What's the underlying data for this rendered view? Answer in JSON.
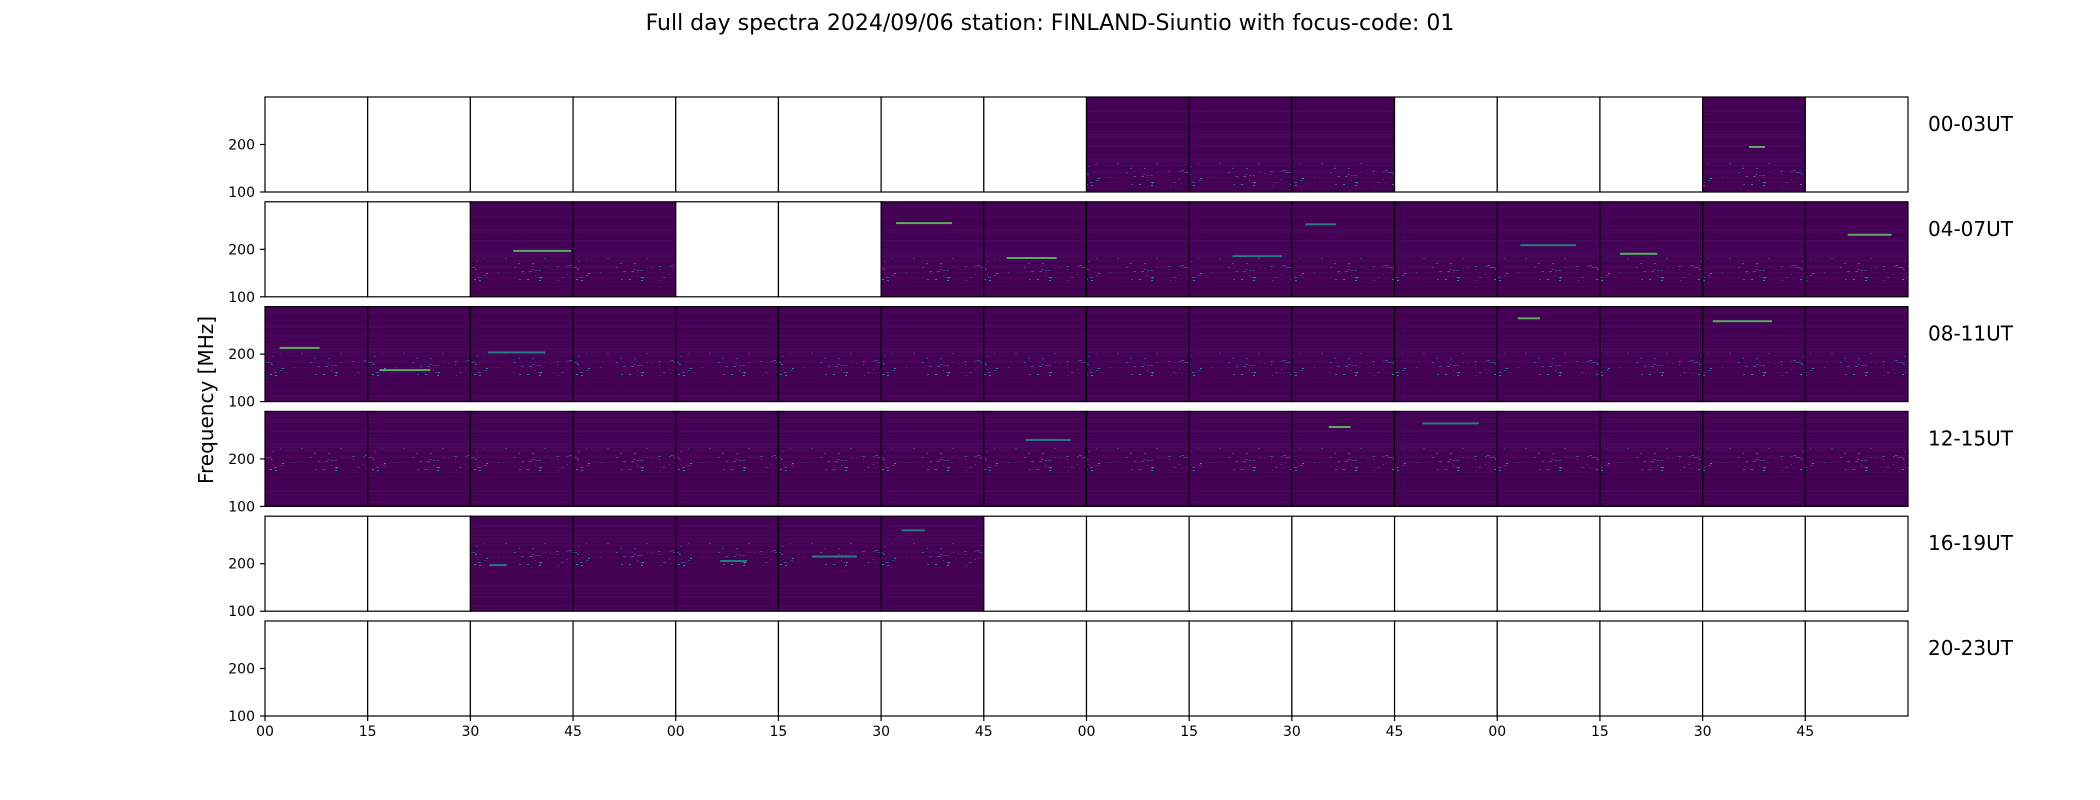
{
  "title": "Full day spectra 2024/09/06 station: FINLAND-Siuntio with focus-code: 01",
  "colors": {
    "background": "#440154",
    "low": "#46085c",
    "medium": "#3b528b",
    "high": "#21918c",
    "peak": "#5ec962",
    "axis": "#000000",
    "empty_panel": "#ffffff"
  },
  "chart_data": {
    "type": "heatmap",
    "title": "Full day spectra 2024/09/06 station: FINLAND-Siuntio with focus-code: 01",
    "ylabel": "Frequency [MHz]",
    "xlabel": "",
    "ylim": [
      100,
      300
    ],
    "yticks": [
      100,
      200
    ],
    "xtick_labels": [
      "00",
      "15",
      "30",
      "45",
      "00",
      "15",
      "30",
      "45",
      "00",
      "15",
      "30",
      "45",
      "00",
      "15",
      "30",
      "45"
    ],
    "colormap": "viridis",
    "slot_minutes": 15,
    "rows": [
      {
        "label": "00-03UT",
        "data_available": [
          0,
          0,
          0,
          0,
          0,
          0,
          0,
          0,
          1,
          1,
          1,
          0,
          0,
          0,
          1,
          0
        ]
      },
      {
        "label": "04-07UT",
        "data_available": [
          0,
          0,
          1,
          1,
          0,
          0,
          1,
          1,
          1,
          1,
          1,
          1,
          1,
          1,
          1,
          1
        ]
      },
      {
        "label": "08-11UT",
        "data_available": [
          1,
          1,
          1,
          1,
          1,
          1,
          1,
          1,
          1,
          1,
          1,
          1,
          1,
          1,
          1,
          1
        ]
      },
      {
        "label": "12-15UT",
        "data_available": [
          1,
          1,
          1,
          1,
          1,
          1,
          1,
          1,
          1,
          1,
          1,
          1,
          1,
          1,
          1,
          1
        ]
      },
      {
        "label": "16-19UT",
        "data_available": [
          0,
          0,
          1,
          1,
          1,
          1,
          1,
          0,
          0,
          0,
          0,
          0,
          0,
          0,
          0,
          0
        ]
      },
      {
        "label": "20-23UT",
        "data_available": [
          0,
          0,
          0,
          0,
          0,
          0,
          0,
          0,
          0,
          0,
          0,
          0,
          0,
          0,
          0,
          0
        ]
      }
    ]
  }
}
